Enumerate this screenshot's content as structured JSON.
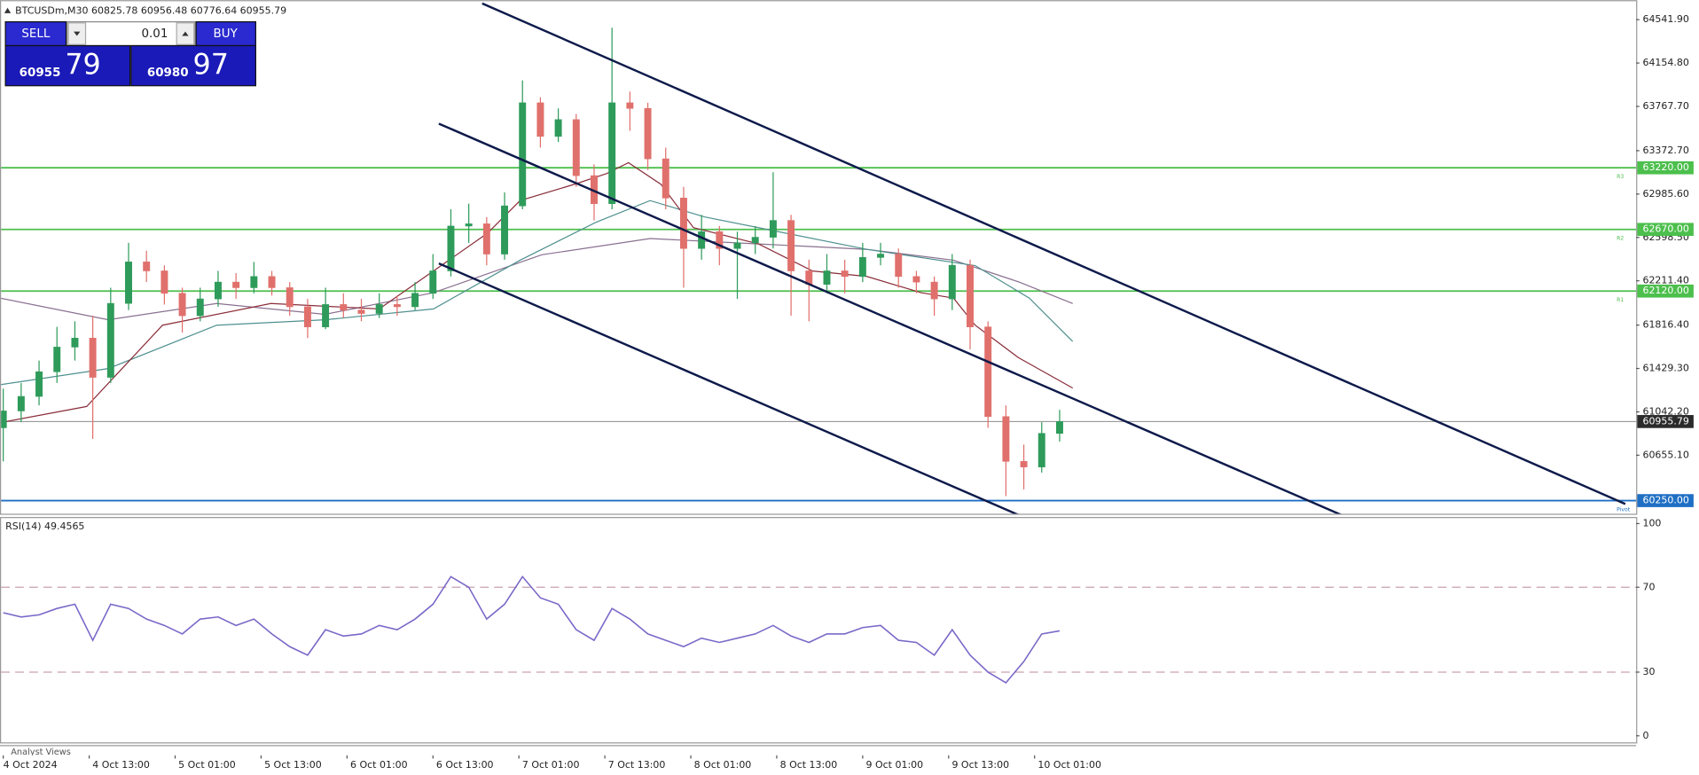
{
  "chart_data": [
    {
      "type": "candlestick",
      "title": "BTCUSDm,M30  60825.78 60956.48 60776.64 60955.79",
      "x": [
        0,
        5,
        10,
        15,
        20,
        25,
        30,
        35,
        40,
        45,
        50,
        55,
        60,
        65,
        70,
        75,
        80,
        85,
        90,
        95,
        100,
        105,
        110,
        115,
        120,
        125,
        130,
        135,
        140,
        145,
        150,
        155,
        160,
        165,
        170,
        175,
        180,
        185,
        190,
        195,
        200,
        205,
        210,
        215,
        220,
        225,
        230,
        235,
        240,
        245,
        250,
        255,
        260,
        265,
        270,
        275,
        280,
        285,
        290,
        295
      ],
      "open": [
        60900,
        61050,
        61180,
        61400,
        61620,
        61700,
        61350,
        62010,
        62380,
        62300,
        62100,
        61900,
        62050,
        62200,
        62150,
        62250,
        62150,
        61980,
        61800,
        62000,
        61950,
        61920,
        62000,
        61980,
        62100,
        62300,
        62700,
        62720,
        62450,
        62880,
        63800,
        63500,
        63650,
        63150,
        62900,
        63800,
        63750,
        63300,
        62950,
        62500,
        62650,
        62500,
        62550,
        62600,
        62750,
        62300,
        62180,
        62300,
        62250,
        62420,
        62450,
        62250,
        62200,
        62050,
        62350,
        61800,
        61000,
        60600,
        60550,
        60850
      ],
      "high": [
        61250,
        61300,
        61500,
        61800,
        61850,
        61900,
        62150,
        62550,
        62480,
        62350,
        62150,
        62150,
        62300,
        62280,
        62380,
        62300,
        62200,
        62050,
        62150,
        62100,
        62050,
        62100,
        62080,
        62200,
        62450,
        62850,
        62900,
        62780,
        63000,
        64000,
        63850,
        63750,
        63700,
        63250,
        64470,
        63900,
        63800,
        63400,
        63050,
        62800,
        62700,
        62650,
        62700,
        63180,
        62800,
        62400,
        62450,
        62400,
        62550,
        62550,
        62500,
        62300,
        62250,
        62450,
        62400,
        61850,
        61100,
        60750,
        60950,
        61060
      ],
      "low": [
        60600,
        60950,
        61100,
        61300,
        61500,
        60800,
        61300,
        61950,
        62200,
        62000,
        61750,
        61850,
        61980,
        62050,
        62100,
        62080,
        61900,
        61700,
        61780,
        61880,
        61850,
        61880,
        61900,
        61950,
        62050,
        62250,
        62550,
        62350,
        62400,
        62850,
        63400,
        63450,
        63050,
        62750,
        62850,
        63550,
        63200,
        62850,
        62150,
        62400,
        62350,
        62050,
        62450,
        62500,
        61900,
        61850,
        62100,
        62100,
        62200,
        62350,
        62150,
        62100,
        61900,
        61950,
        61600,
        60900,
        60290,
        60350,
        60500,
        60776.64
      ],
      "close": [
        61050,
        61180,
        61400,
        61620,
        61700,
        61350,
        62010,
        62380,
        62300,
        62100,
        61900,
        62050,
        62200,
        62150,
        62250,
        62150,
        61980,
        61800,
        62000,
        61950,
        61920,
        62000,
        61980,
        62100,
        62300,
        62700,
        62720,
        62450,
        62880,
        63800,
        63500,
        63650,
        63150,
        62900,
        63800,
        63750,
        63300,
        62950,
        62500,
        62650,
        62500,
        62550,
        62600,
        62750,
        62300,
        62180,
        62300,
        62250,
        62420,
        62450,
        62250,
        62200,
        62050,
        62350,
        61800,
        61000,
        60600,
        60550,
        60850,
        60955.79
      ],
      "up_color": "#2e9b5a",
      "down_color": "#e0706c",
      "xlim": [
        0,
        456
      ],
      "ylim": [
        60133,
        64716
      ],
      "yticks": [
        {
          "value": 64541.9,
          "label": "64541.90"
        },
        {
          "value": 64154.8,
          "label": "64154.80"
        },
        {
          "value": 63767.7,
          "label": "63767.70"
        },
        {
          "value": 63372.7,
          "label": "63372.70"
        },
        {
          "value": 62985.6,
          "label": "62985.60"
        },
        {
          "value": 62598.5,
          "label": "62598.50"
        },
        {
          "value": 62211.4,
          "label": "62211.40"
        },
        {
          "value": 61816.4,
          "label": "61816.40"
        },
        {
          "value": 61429.3,
          "label": "61429.30"
        },
        {
          "value": 61042.2,
          "label": "61042.20"
        },
        {
          "value": 60655.1,
          "label": "60655.10"
        }
      ],
      "xticks": [
        {
          "value": 0,
          "label": "4 Oct 2024"
        },
        {
          "value": 24,
          "label": "4 Oct 13:00"
        },
        {
          "value": 48,
          "label": "5 Oct 01:00"
        },
        {
          "value": 72,
          "label": "5 Oct 13:00"
        },
        {
          "value": 96,
          "label": "6 Oct 01:00"
        },
        {
          "value": 120,
          "label": "6 Oct 13:00"
        },
        {
          "value": 144,
          "label": "7 Oct 01:00"
        },
        {
          "value": 168,
          "label": "7 Oct 13:00"
        },
        {
          "value": 192,
          "label": "8 Oct 01:00"
        },
        {
          "value": 216,
          "label": "8 Oct 13:00"
        },
        {
          "value": 240,
          "label": "9 Oct 01:00"
        },
        {
          "value": 264,
          "label": "9 Oct 13:00"
        },
        {
          "value": 288,
          "label": "10 Oct 01:00"
        }
      ],
      "levels": [
        {
          "value": 63220,
          "label": "63220.00",
          "name": "R3",
          "color": "#4cbf4c"
        },
        {
          "value": 62670,
          "label": "62670.00",
          "name": "R2",
          "color": "#4cbf4c"
        },
        {
          "value": 62120,
          "label": "62120.00",
          "name": "R1",
          "color": "#4cbf4c"
        },
        {
          "value": 60250,
          "label": "60250.00",
          "name": "Pivot",
          "color": "#1f6fc4"
        }
      ],
      "current": {
        "value": 60955.79,
        "label": "60955.79",
        "color": "#8c8c8c"
      }
    },
    {
      "type": "line",
      "title": "RSI(14) 49.4565",
      "x": [
        0,
        5,
        10,
        15,
        20,
        25,
        30,
        35,
        40,
        45,
        50,
        55,
        60,
        65,
        70,
        75,
        80,
        85,
        90,
        95,
        100,
        105,
        110,
        115,
        120,
        125,
        130,
        135,
        140,
        145,
        150,
        155,
        160,
        165,
        170,
        175,
        180,
        185,
        190,
        195,
        200,
        205,
        210,
        215,
        220,
        225,
        230,
        235,
        240,
        245,
        250,
        255,
        260,
        265,
        270,
        275,
        280,
        285,
        290,
        295
      ],
      "values": [
        58,
        56,
        57,
        60,
        62,
        45,
        62,
        60,
        55,
        52,
        48,
        55,
        56,
        52,
        55,
        48,
        42,
        38,
        50,
        47,
        48,
        52,
        50,
        55,
        62,
        75,
        70,
        55,
        62,
        75,
        65,
        62,
        50,
        45,
        60,
        55,
        48,
        45,
        42,
        46,
        44,
        46,
        48,
        52,
        47,
        44,
        48,
        48,
        51,
        52,
        45,
        44,
        38,
        50,
        38,
        30,
        25,
        35,
        48,
        49.4565
      ],
      "color": "#7b68c8",
      "ylim": [
        -3.6,
        102.6
      ],
      "yticks": [
        100,
        70,
        30,
        0
      ],
      "dashed": [
        70,
        30
      ],
      "footer": "Analyst Views"
    }
  ],
  "trade_panel": {
    "sell": "SELL",
    "lot": "0.01",
    "buy": "BUY",
    "sell_main": "60955",
    "sell_big": "79",
    "buy_main": "60980",
    "buy_big": "97"
  }
}
